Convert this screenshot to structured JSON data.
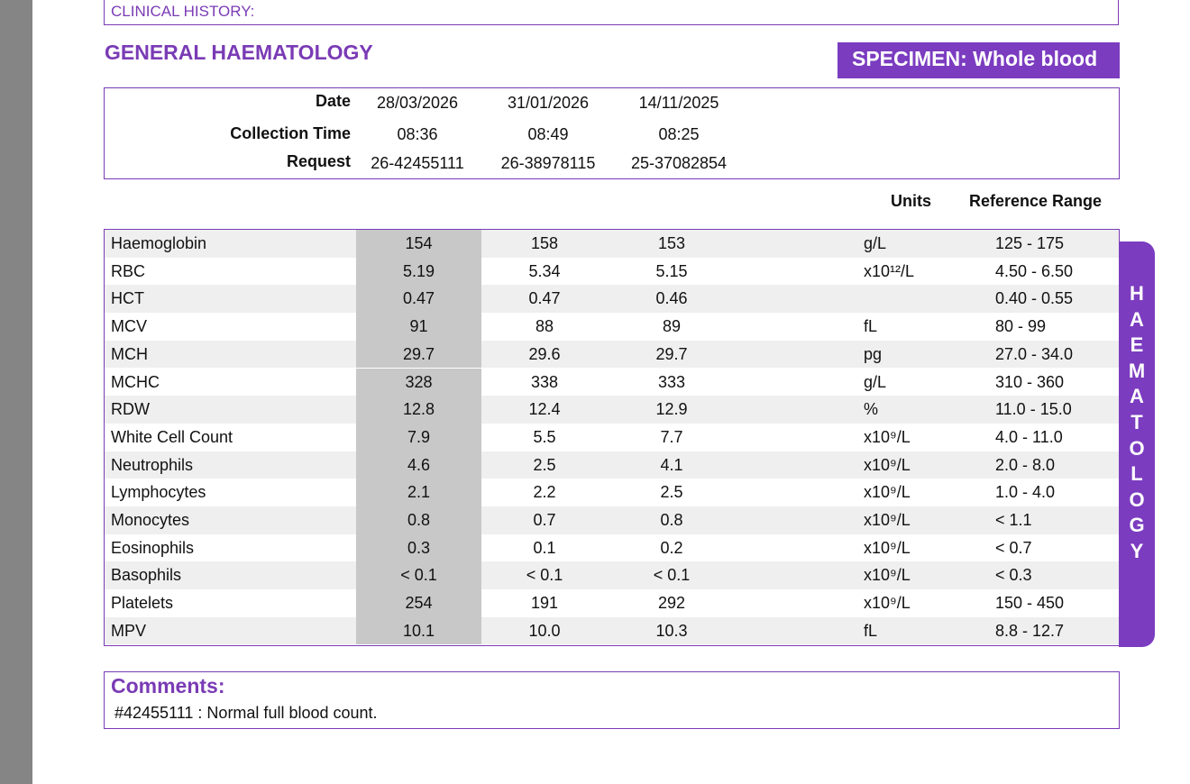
{
  "clinical_history_label": "CLINICAL HISTORY:",
  "section_title": "GENERAL HAEMATOLOGY",
  "specimen": "SPECIMEN: Whole blood",
  "header": {
    "date_label": "Date",
    "time_label": "Collection Time",
    "request_label": "Request",
    "dates": [
      "28/03/2026",
      "31/01/2026",
      "14/11/2025"
    ],
    "times": [
      "08:36",
      "08:49",
      "08:25"
    ],
    "requests": [
      "26-42455111",
      "26-38978115",
      "25-37082854"
    ]
  },
  "units_label": "Units",
  "reference_label": "Reference Range",
  "rows": [
    {
      "name": "Haemoglobin",
      "values": [
        "154",
        "158",
        "153"
      ],
      "unit": "g/L",
      "ref": "125 - 175"
    },
    {
      "name": "RBC",
      "values": [
        "5.19",
        "5.34",
        "5.15"
      ],
      "unit": "x10¹²/L",
      "ref": "4.50 - 6.50"
    },
    {
      "name": "HCT",
      "values": [
        "0.47",
        "0.47",
        "0.46"
      ],
      "unit": "",
      "ref": "0.40 - 0.55"
    },
    {
      "name": "MCV",
      "values": [
        "91",
        "88",
        "89"
      ],
      "unit": "fL",
      "ref": "80 - 99"
    },
    {
      "name": "MCH",
      "values": [
        "29.7",
        "29.6",
        "29.7"
      ],
      "unit": "pg",
      "ref": "27.0 - 34.0"
    },
    {
      "name": "MCHC",
      "values": [
        "328",
        "338",
        "333"
      ],
      "unit": "g/L",
      "ref": "310 - 360"
    },
    {
      "name": "RDW",
      "values": [
        "12.8",
        "12.4",
        "12.9"
      ],
      "unit": "%",
      "ref": "11.0 - 15.0"
    },
    {
      "name": "White Cell Count",
      "values": [
        "7.9",
        "5.5",
        "7.7"
      ],
      "unit": "x10⁹/L",
      "ref": "4.0 - 11.0"
    },
    {
      "name": "Neutrophils",
      "values": [
        "4.6",
        "2.5",
        "4.1"
      ],
      "unit": "x10⁹/L",
      "ref": "2.0 - 8.0"
    },
    {
      "name": "Lymphocytes",
      "values": [
        "2.1",
        "2.2",
        "2.5"
      ],
      "unit": "x10⁹/L",
      "ref": "1.0 - 4.0"
    },
    {
      "name": "Monocytes",
      "values": [
        "0.8",
        "0.7",
        "0.8"
      ],
      "unit": "x10⁹/L",
      "ref": "< 1.1"
    },
    {
      "name": "Eosinophils",
      "values": [
        "0.3",
        "0.1",
        "0.2"
      ],
      "unit": "x10⁹/L",
      "ref": "< 0.7"
    },
    {
      "name": "Basophils",
      "values": [
        "< 0.1",
        "< 0.1",
        "< 0.1"
      ],
      "unit": "x10⁹/L",
      "ref": "< 0.3"
    },
    {
      "name": "Platelets",
      "values": [
        "254",
        "191",
        "292"
      ],
      "unit": "x10⁹/L",
      "ref": "150 - 450"
    },
    {
      "name": "MPV",
      "values": [
        "10.1",
        "10.0",
        "10.3"
      ],
      "unit": "fL",
      "ref": "8.8 - 12.7"
    }
  ],
  "side_tab": "HAEMATOLOGY",
  "comments_title": "Comments:",
  "comments_text": "#42455111 : Normal full blood count."
}
